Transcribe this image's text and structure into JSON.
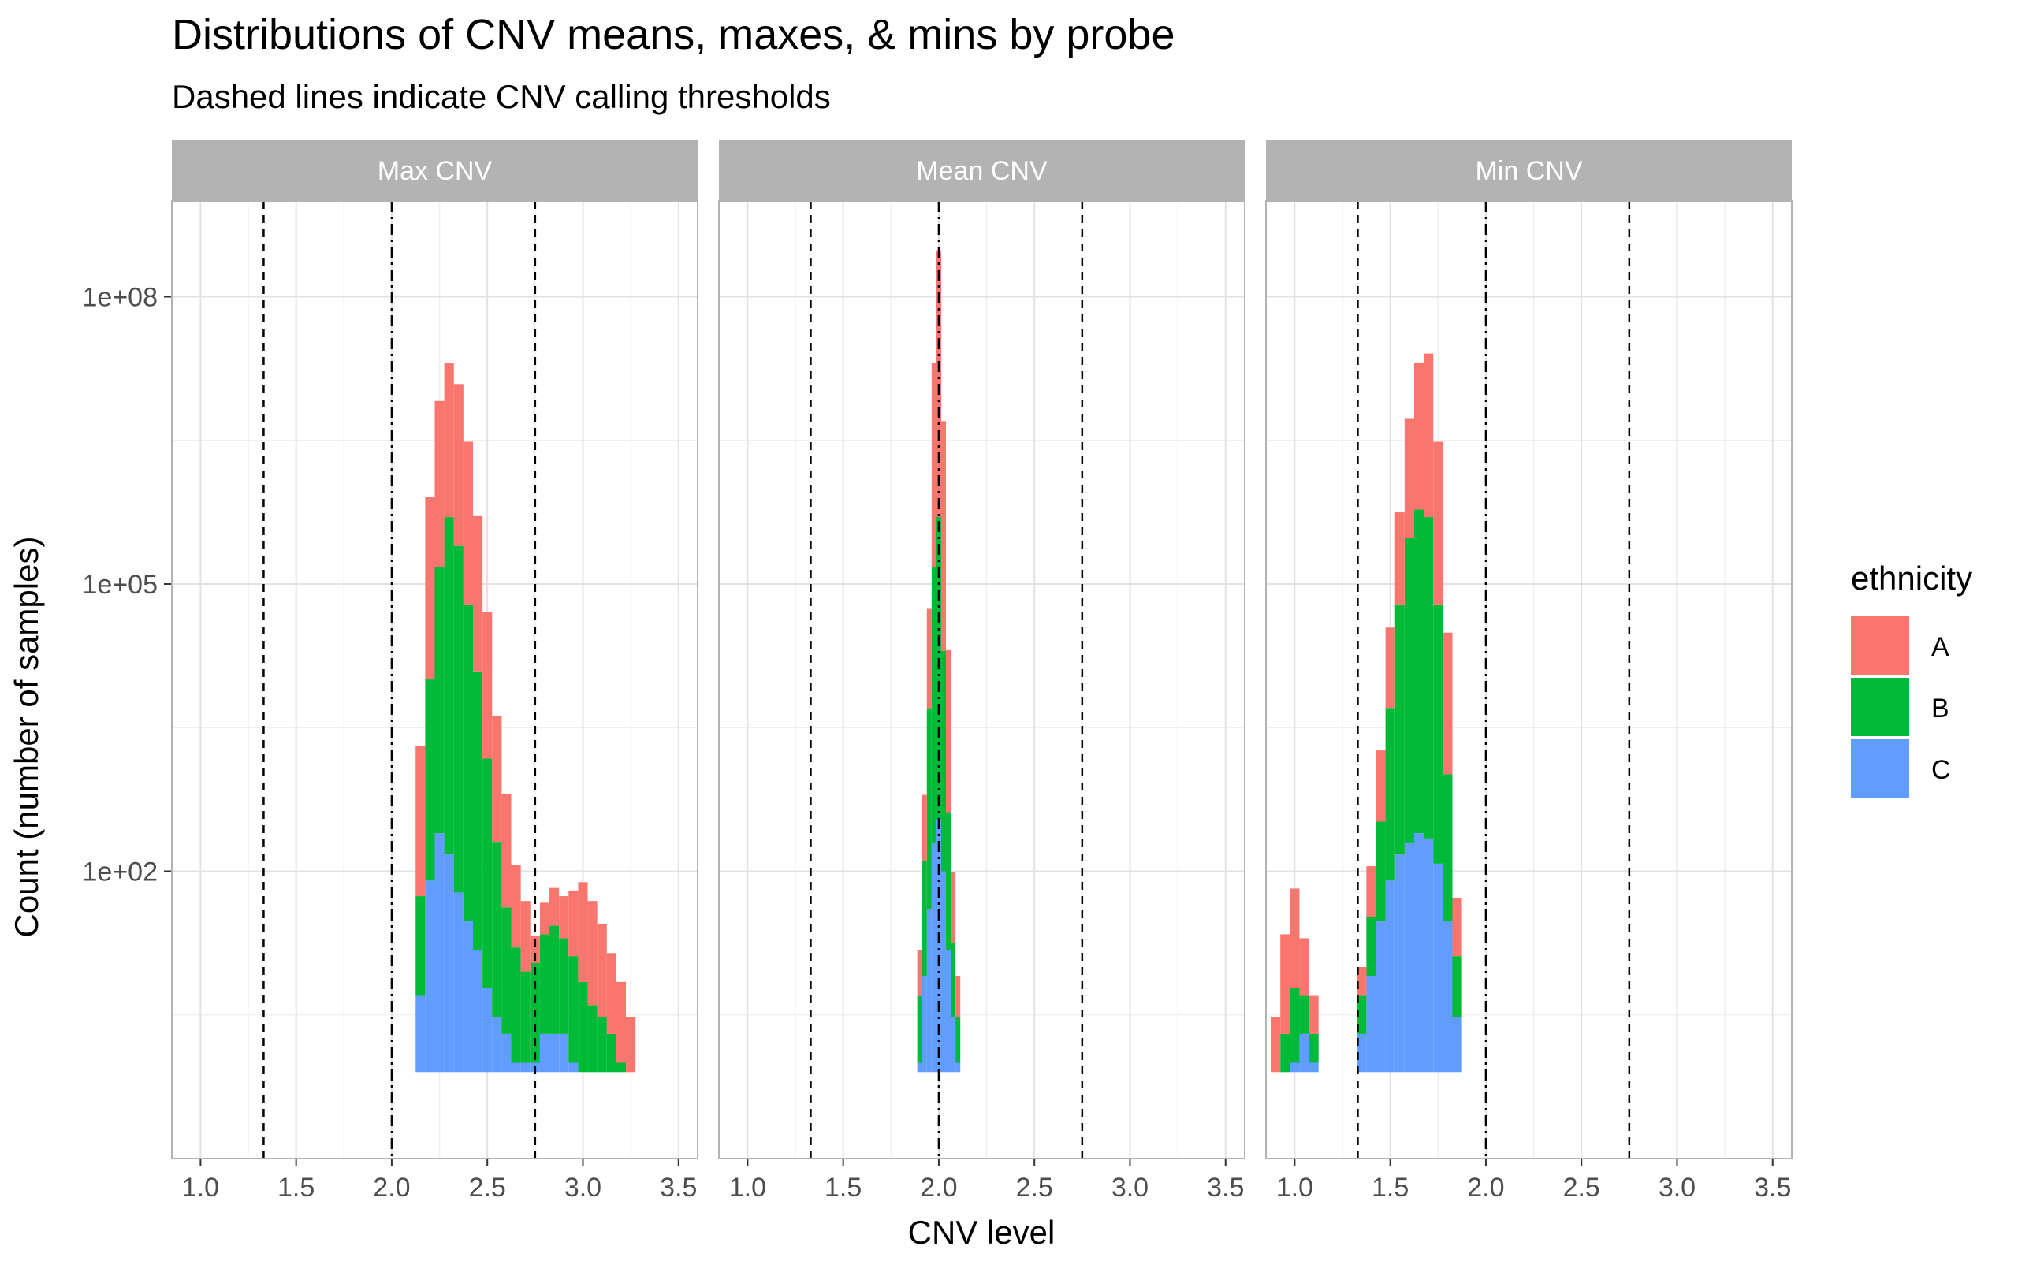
{
  "chart_data": {
    "type": "histogram",
    "title": "Distributions of CNV means, maxes, & mins by probe",
    "subtitle": "Dashed lines indicate CNV calling thresholds",
    "xlabel": "CNV level",
    "ylabel": "Count (number of samples)",
    "x_ticks": [
      "1.0",
      "1.5",
      "2.0",
      "2.5",
      "3.0",
      "3.5"
    ],
    "x_tick_values": [
      1.0,
      1.5,
      2.0,
      2.5,
      3.0,
      3.5
    ],
    "xlim": [
      0.85,
      3.6
    ],
    "y_scale": "log10",
    "y_ticks": [
      "1e+02",
      "1e+05",
      "1e+08"
    ],
    "y_tick_values": [
      100,
      100000,
      100000000
    ],
    "ylim": [
      0.1,
      1000000000
    ],
    "thresholds": [
      1.33,
      2.75
    ],
    "center_line": 2.0,
    "grid": true,
    "legend": {
      "title": "ethnicity",
      "position": "right",
      "entries": [
        {
          "name": "A",
          "color": "#F8766D"
        },
        {
          "name": "B",
          "color": "#00BA38"
        },
        {
          "name": "C",
          "color": "#619CFF"
        }
      ]
    },
    "stacking": "stacked",
    "facets": [
      {
        "label": "Max CNV",
        "series": [
          {
            "name": "A",
            "color": "#F8766D",
            "segments": [
              {
                "x": [
                  2.15,
                  2.2,
                  2.25,
                  2.3,
                  2.35,
                  2.4,
                  2.45,
                  2.5,
                  2.55,
                  2.6,
                  2.65,
                  2.7
                ],
                "y": [
                  2000,
                  800000,
                  8000000,
                  20000000,
                  12000000,
                  3000000,
                  500000,
                  50000,
                  4000,
                  600,
                  100,
                  40
                ]
              },
              {
                "x": [
                  2.75,
                  2.8,
                  2.85,
                  2.9,
                  2.95,
                  3.0,
                  3.05,
                  3.1,
                  3.15,
                  3.2,
                  3.25
                ],
                "y": [
                  10,
                  25,
                  40,
                  35,
                  50,
                  70,
                  45,
                  25,
                  12,
                  6,
                  3
                ]
              }
            ]
          },
          {
            "name": "B",
            "color": "#00BA38",
            "segments": [
              {
                "x": [
                  2.15,
                  2.2,
                  2.25,
                  2.3,
                  2.35,
                  2.4,
                  2.45,
                  2.5,
                  2.55,
                  2.6,
                  2.65,
                  2.7
                ],
                "y": [
                  50,
                  10000,
                  150000,
                  500000,
                  250000,
                  60000,
                  12000,
                  1500,
                  200,
                  40,
                  15,
                  8
                ]
              },
              {
                "x": [
                  2.75,
                  2.8,
                  2.85,
                  2.9,
                  2.95,
                  3.0,
                  3.05,
                  3.1,
                  3.15,
                  3.2
                ],
                "y": [
                  10,
                  20,
                  25,
                  18,
                  12,
                  7,
                  4,
                  3,
                  2,
                  1
                ]
              }
            ]
          },
          {
            "name": "C",
            "color": "#619CFF",
            "segments": [
              {
                "x": [
                  2.15,
                  2.2,
                  2.25,
                  2.3,
                  2.35,
                  2.4,
                  2.45,
                  2.5,
                  2.55,
                  2.6,
                  2.65,
                  2.7
                ],
                "y": [
                  5,
                  80,
                  250,
                  150,
                  60,
                  30,
                  15,
                  6,
                  3,
                  2,
                  1,
                  1
                ]
              },
              {
                "x": [
                  2.75,
                  2.8,
                  2.85,
                  2.9,
                  2.95
                ],
                "y": [
                  1,
                  2,
                  2,
                  2,
                  1
                ]
              }
            ]
          }
        ]
      },
      {
        "label": "Mean CNV",
        "series": [
          {
            "name": "A",
            "color": "#F8766D",
            "segments": [
              {
                "x": [
                  1.9,
                  1.925,
                  1.95,
                  1.975,
                  2.0,
                  2.025,
                  2.05,
                  2.075,
                  2.1
                ],
                "y": [
                  10,
                  500,
                  50000,
                  20000000,
                  300000000,
                  5000000,
                  20000,
                  80,
                  5
                ]
              }
            ]
          },
          {
            "name": "B",
            "color": "#00BA38",
            "segments": [
              {
                "x": [
                  1.9,
                  1.925,
                  1.95,
                  1.975,
                  2.0,
                  2.025,
                  2.05,
                  2.075,
                  2.1
                ],
                "y": [
                  4,
                  120,
                  5000,
                  150000,
                  500000,
                  20000,
                  400,
                  15,
                  2
                ]
              }
            ]
          },
          {
            "name": "C",
            "color": "#619CFF",
            "segments": [
              {
                "x": [
                  1.9,
                  1.925,
                  1.95,
                  1.975,
                  2.0,
                  2.025,
                  2.05,
                  2.075,
                  2.1
                ],
                "y": [
                  1,
                  8,
                  40,
                  200,
                  350,
                  100,
                  15,
                  3,
                  1
                ]
              }
            ]
          }
        ]
      },
      {
        "label": "Min CNV",
        "series": [
          {
            "name": "A",
            "color": "#F8766D",
            "segments": [
              {
                "x": [
                  0.9,
                  0.95,
                  1.0,
                  1.05,
                  1.1
                ],
                "y": [
                  3,
                  20,
                  60,
                  15,
                  3
                ]
              },
              {
                "x": [
                  1.35,
                  1.4,
                  1.45,
                  1.5,
                  1.55,
                  1.6,
                  1.65,
                  1.7,
                  1.75,
                  1.8,
                  1.85
                ],
                "y": [
                  5,
                  80,
                  1500,
                  30000,
                  500000,
                  5000000,
                  20000000,
                  25000000,
                  3000000,
                  30000,
                  40
                ]
              }
            ]
          },
          {
            "name": "B",
            "color": "#00BA38",
            "segments": [
              {
                "x": [
                  0.95,
                  1.0,
                  1.05,
                  1.1
                ],
                "y": [
                  2,
                  5,
                  3,
                  1
                ]
              },
              {
                "x": [
                  1.35,
                  1.4,
                  1.45,
                  1.5,
                  1.55,
                  1.6,
                  1.65,
                  1.7,
                  1.75,
                  1.8,
                  1.85
                ],
                "y": [
                  3,
                  25,
                  300,
                  5000,
                  60000,
                  300000,
                  600000,
                  500000,
                  60000,
                  1000,
                  10
                ]
              }
            ]
          },
          {
            "name": "C",
            "color": "#619CFF",
            "segments": [
              {
                "x": [
                  1.0,
                  1.05,
                  1.1
                ],
                "y": [
                  1,
                  2,
                  1
                ]
              },
              {
                "x": [
                  1.35,
                  1.4,
                  1.45,
                  1.5,
                  1.55,
                  1.6,
                  1.65,
                  1.7,
                  1.75,
                  1.8,
                  1.85
                ],
                "y": [
                  2,
                  8,
                  30,
                  80,
                  150,
                  200,
                  250,
                  220,
                  120,
                  30,
                  3
                ]
              }
            ]
          }
        ]
      }
    ]
  }
}
